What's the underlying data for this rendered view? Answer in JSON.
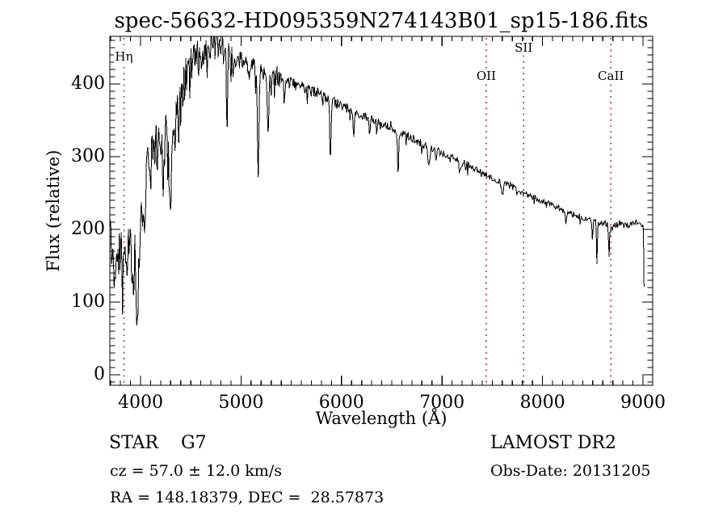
{
  "figure": {
    "title": "spec-56632-HD095359N274143B01_sp15-186.fits",
    "classification": "STAR    G7",
    "cz_label": "cz = 57.0 ± 12.0 km/s",
    "radec_label": "RA = 148.18379, DEC =  28.57873",
    "survey": "LAMOST DR2",
    "obs_date_label": "Obs-Date: 20131205"
  },
  "chart_data": {
    "type": "line",
    "title": "spec-56632-HD095359N274143B01_sp15-186.fits",
    "xlabel": "Wavelength (Å)",
    "ylabel": "Flux (relative)",
    "xlim": [
      3694,
      9096
    ],
    "ylim": [
      -15,
      465
    ],
    "xticks": [
      4000,
      5000,
      6000,
      7000,
      8000,
      9000
    ],
    "yticks": [
      0,
      100,
      200,
      300,
      400
    ],
    "x_minor_step": 100,
    "y_minor_step": 10,
    "grid": false,
    "line_color": "#000000",
    "marker_line_color": "#8f3026",
    "line_markers": [
      {
        "label": "Hη",
        "wavelength": 3835,
        "label_y": 71
      },
      {
        "label": "OII",
        "wavelength": 7440,
        "label_y": 95
      },
      {
        "label": "SII",
        "wavelength": 7812,
        "label_y": 60
      },
      {
        "label": "CaII",
        "wavelength": 8680,
        "label_y": 95
      }
    ],
    "continuum_points": [
      [
        3694,
        215
      ],
      [
        3710,
        175
      ],
      [
        3725,
        150
      ],
      [
        3745,
        175
      ],
      [
        3770,
        165
      ],
      [
        3800,
        162
      ],
      [
        3830,
        150
      ],
      [
        3860,
        148
      ],
      [
        3895,
        168
      ],
      [
        3930,
        150
      ],
      [
        3965,
        140
      ],
      [
        4000,
        195
      ],
      [
        4040,
        255
      ],
      [
        4080,
        290
      ],
      [
        4130,
        310
      ],
      [
        4180,
        318
      ],
      [
        4240,
        322
      ],
      [
        4300,
        330
      ],
      [
        4360,
        355
      ],
      [
        4420,
        398
      ],
      [
        4480,
        424
      ],
      [
        4540,
        441
      ],
      [
        4600,
        438
      ],
      [
        4660,
        446
      ],
      [
        4720,
        450
      ],
      [
        4780,
        452
      ],
      [
        4840,
        446
      ],
      [
        4900,
        439
      ],
      [
        4960,
        433
      ],
      [
        5020,
        430
      ],
      [
        5090,
        426
      ],
      [
        5160,
        421
      ],
      [
        5240,
        416
      ],
      [
        5320,
        410
      ],
      [
        5400,
        405
      ],
      [
        5480,
        401
      ],
      [
        5560,
        397
      ],
      [
        5640,
        393
      ],
      [
        5720,
        389
      ],
      [
        5800,
        385
      ],
      [
        5880,
        380
      ],
      [
        5960,
        373
      ],
      [
        6040,
        368
      ],
      [
        6120,
        362
      ],
      [
        6200,
        357
      ],
      [
        6280,
        352
      ],
      [
        6360,
        347
      ],
      [
        6440,
        342
      ],
      [
        6520,
        337
      ],
      [
        6600,
        332
      ],
      [
        6680,
        327
      ],
      [
        6760,
        321
      ],
      [
        6840,
        316
      ],
      [
        6920,
        311
      ],
      [
        7000,
        305
      ],
      [
        7080,
        300
      ],
      [
        7160,
        295
      ],
      [
        7240,
        290
      ],
      [
        7320,
        284
      ],
      [
        7400,
        278
      ],
      [
        7480,
        272
      ],
      [
        7560,
        267
      ],
      [
        7640,
        262
      ],
      [
        7720,
        257
      ],
      [
        7800,
        251
      ],
      [
        7880,
        246
      ],
      [
        7960,
        241
      ],
      [
        8040,
        237
      ],
      [
        8120,
        232
      ],
      [
        8200,
        227
      ],
      [
        8280,
        222
      ],
      [
        8360,
        218
      ],
      [
        8440,
        214
      ],
      [
        8520,
        211
      ],
      [
        8600,
        208
      ],
      [
        8680,
        206
      ],
      [
        8760,
        205
      ],
      [
        8840,
        206
      ],
      [
        8920,
        209
      ],
      [
        8970,
        211
      ],
      [
        9004,
        203
      ],
      [
        9010,
        128
      ],
      [
        9014,
        55
      ],
      [
        9016,
        -12
      ]
    ],
    "absorption_features": [
      [
        3933,
        55,
        8
      ],
      [
        3968,
        50,
        8
      ],
      [
        4045,
        55,
        5
      ],
      [
        4101,
        50,
        6
      ],
      [
        4227,
        45,
        5
      ],
      [
        4300,
        85,
        13
      ],
      [
        4340,
        50,
        6
      ],
      [
        4383,
        42,
        5
      ],
      [
        4861,
        105,
        5
      ],
      [
        4920,
        35,
        6
      ],
      [
        5170,
        140,
        8
      ],
      [
        5270,
        90,
        7
      ],
      [
        5430,
        30,
        5
      ],
      [
        5890,
        75,
        7
      ],
      [
        6122,
        25,
        6
      ],
      [
        6280,
        18,
        5
      ],
      [
        6563,
        65,
        5
      ],
      [
        6870,
        26,
        9
      ],
      [
        7180,
        13,
        9
      ],
      [
        7600,
        18,
        9
      ],
      [
        8230,
        15,
        7
      ],
      [
        8498,
        28,
        4
      ],
      [
        8542,
        48,
        4
      ],
      [
        8662,
        44,
        4
      ]
    ],
    "noise_profile": [
      [
        3694,
        45
      ],
      [
        3900,
        42
      ],
      [
        4000,
        40
      ],
      [
        4200,
        38
      ],
      [
        4400,
        32
      ],
      [
        4600,
        22
      ],
      [
        4800,
        18
      ],
      [
        5000,
        14
      ],
      [
        5300,
        11
      ],
      [
        5600,
        9
      ],
      [
        6000,
        7.5
      ],
      [
        6400,
        6
      ],
      [
        7000,
        5
      ],
      [
        7600,
        4
      ],
      [
        8300,
        4
      ],
      [
        8800,
        5
      ],
      [
        9004,
        3
      ],
      [
        9016,
        1
      ]
    ],
    "noise_seed": 42
  }
}
